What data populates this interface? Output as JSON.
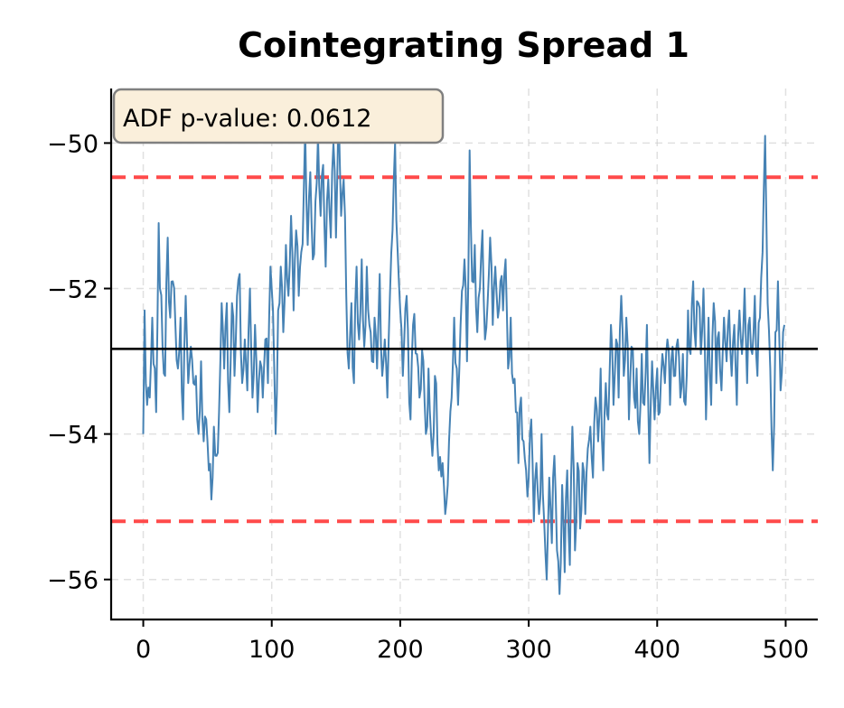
{
  "chart_data": {
    "type": "line",
    "title": "Cointegrating Spread 1",
    "xlabel": "",
    "ylabel": "",
    "xlim": [
      -25,
      525
    ],
    "ylim": [
      -56.55,
      -49.25
    ],
    "xticks": [
      0,
      100,
      200,
      300,
      400,
      500
    ],
    "xtick_labels": [
      "0",
      "100",
      "200",
      "300",
      "400",
      "500"
    ],
    "yticks": [
      -50,
      -52,
      -54,
      -56
    ],
    "ytick_labels": [
      "−50",
      "−52",
      "−54",
      "−56"
    ],
    "grid": true,
    "annotation": "ADF p-value: 0.0612",
    "mean_line": -52.83,
    "upper_band": -50.47,
    "lower_band": -55.2,
    "n_points": 500,
    "series_color": "#4682B4",
    "band_color": "#FF4A4A",
    "mean_color": "#000000",
    "annotation_bg": "#FAEFDB",
    "annotation_border": "#808080",
    "anchors": [
      [
        0,
        -54.0
      ],
      [
        1,
        -52.3
      ],
      [
        3,
        -53.6
      ],
      [
        5,
        -53.5
      ],
      [
        7,
        -52.4
      ],
      [
        10,
        -53.7
      ],
      [
        12,
        -51.1
      ],
      [
        13,
        -52.0
      ],
      [
        15,
        -52.8
      ],
      [
        17,
        -53.2
      ],
      [
        19,
        -51.3
      ],
      [
        21,
        -52.4
      ],
      [
        23,
        -51.9
      ],
      [
        25,
        -52.5
      ],
      [
        27,
        -53.1
      ],
      [
        29,
        -52.4
      ],
      [
        31,
        -53.8
      ],
      [
        33,
        -52.1
      ],
      [
        35,
        -53.3
      ],
      [
        37,
        -52.8
      ],
      [
        39,
        -53.3
      ],
      [
        41,
        -53.2
      ],
      [
        43,
        -54.0
      ],
      [
        45,
        -53.0
      ],
      [
        47,
        -54.1
      ],
      [
        49,
        -53.8
      ],
      [
        51,
        -54.5
      ],
      [
        53,
        -54.9
      ],
      [
        55,
        -53.9
      ],
      [
        57,
        -54.3
      ],
      [
        59,
        -53.7
      ],
      [
        61,
        -52.2
      ],
      [
        63,
        -53.1
      ],
      [
        65,
        -52.2
      ],
      [
        67,
        -53.7
      ],
      [
        69,
        -52.2
      ],
      [
        71,
        -53.2
      ],
      [
        73,
        -52.1
      ],
      [
        75,
        -51.8
      ],
      [
        77,
        -53.3
      ],
      [
        79,
        -52.7
      ],
      [
        81,
        -53.4
      ],
      [
        83,
        -52.0
      ],
      [
        85,
        -53.5
      ],
      [
        87,
        -52.5
      ],
      [
        89,
        -53.7
      ],
      [
        91,
        -53.0
      ],
      [
        93,
        -53.5
      ],
      [
        95,
        -52.7
      ],
      [
        97,
        -53.3
      ],
      [
        99,
        -51.7
      ],
      [
        101,
        -52.3
      ],
      [
        103,
        -54.0
      ],
      [
        105,
        -52.3
      ],
      [
        107,
        -51.7
      ],
      [
        109,
        -52.6
      ],
      [
        111,
        -51.4
      ],
      [
        113,
        -52.1
      ],
      [
        115,
        -51.0
      ],
      [
        117,
        -52.3
      ],
      [
        119,
        -51.2
      ],
      [
        121,
        -52.1
      ],
      [
        123,
        -51.5
      ],
      [
        125,
        -50.6
      ],
      [
        126,
        -49.8
      ],
      [
        128,
        -51.4
      ],
      [
        130,
        -50.4
      ],
      [
        132,
        -51.6
      ],
      [
        134,
        -50.8
      ],
      [
        136,
        -49.9
      ],
      [
        138,
        -51.0
      ],
      [
        140,
        -50.3
      ],
      [
        142,
        -51.7
      ],
      [
        144,
        -50.5
      ],
      [
        146,
        -51.3
      ],
      [
        148,
        -50.0
      ],
      [
        150,
        -51.3
      ],
      [
        152,
        -49.5
      ],
      [
        154,
        -51.0
      ],
      [
        156,
        -50.5
      ],
      [
        158,
        -52.1
      ],
      [
        160,
        -53.1
      ],
      [
        162,
        -52.2
      ],
      [
        164,
        -53.3
      ],
      [
        166,
        -51.7
      ],
      [
        168,
        -52.7
      ],
      [
        170,
        -51.6
      ],
      [
        172,
        -52.8
      ],
      [
        174,
        -51.7
      ],
      [
        176,
        -52.5
      ],
      [
        178,
        -53.0
      ],
      [
        180,
        -52.4
      ],
      [
        182,
        -53.1
      ],
      [
        184,
        -51.8
      ],
      [
        186,
        -53.2
      ],
      [
        188,
        -52.7
      ],
      [
        190,
        -53.5
      ],
      [
        192,
        -52.1
      ],
      [
        194,
        -51.2
      ],
      [
        196,
        -50.0
      ],
      [
        198,
        -51.5
      ],
      [
        200,
        -52.3
      ],
      [
        202,
        -53.2
      ],
      [
        205,
        -52.1
      ],
      [
        208,
        -53.8
      ],
      [
        210,
        -52.5
      ],
      [
        213,
        -52.9
      ],
      [
        215,
        -53.5
      ],
      [
        218,
        -53.0
      ],
      [
        220,
        -54.0
      ],
      [
        222,
        -53.1
      ],
      [
        225,
        -54.3
      ],
      [
        227,
        -53.2
      ],
      [
        230,
        -54.5
      ],
      [
        233,
        -54.4
      ],
      [
        235,
        -55.1
      ],
      [
        237,
        -54.7
      ],
      [
        240,
        -53.5
      ],
      [
        242,
        -52.4
      ],
      [
        245,
        -53.6
      ],
      [
        247,
        -52.5
      ],
      [
        250,
        -51.6
      ],
      [
        252,
        -53.0
      ],
      [
        254,
        -50.1
      ],
      [
        256,
        -51.9
      ],
      [
        258,
        -51.4
      ],
      [
        260,
        -52.6
      ],
      [
        262,
        -52.0
      ],
      [
        264,
        -51.2
      ],
      [
        266,
        -52.7
      ],
      [
        268,
        -52.2
      ],
      [
        270,
        -51.3
      ],
      [
        272,
        -52.5
      ],
      [
        274,
        -51.7
      ],
      [
        276,
        -52.4
      ],
      [
        278,
        -51.9
      ],
      [
        280,
        -52.3
      ],
      [
        282,
        -51.6
      ],
      [
        284,
        -53.1
      ],
      [
        286,
        -52.4
      ],
      [
        288,
        -53.3
      ],
      [
        290,
        -53.7
      ],
      [
        292,
        -54.4
      ],
      [
        294,
        -53.5
      ],
      [
        296,
        -54.1
      ],
      [
        298,
        -54.5
      ],
      [
        300,
        -54.6
      ],
      [
        302,
        -53.8
      ],
      [
        304,
        -55.2
      ],
      [
        306,
        -54.4
      ],
      [
        308,
        -55.1
      ],
      [
        310,
        -54.0
      ],
      [
        312,
        -55.2
      ],
      [
        314,
        -56.0
      ],
      [
        316,
        -54.6
      ],
      [
        318,
        -55.5
      ],
      [
        320,
        -54.3
      ],
      [
        322,
        -55.6
      ],
      [
        324,
        -56.2
      ],
      [
        326,
        -54.7
      ],
      [
        328,
        -55.9
      ],
      [
        330,
        -54.5
      ],
      [
        332,
        -55.8
      ],
      [
        334,
        -53.9
      ],
      [
        336,
        -55.6
      ],
      [
        338,
        -54.4
      ],
      [
        340,
        -55.3
      ],
      [
        342,
        -54.4
      ],
      [
        344,
        -55.1
      ],
      [
        346,
        -54.2
      ],
      [
        348,
        -53.9
      ],
      [
        350,
        -54.6
      ],
      [
        352,
        -53.5
      ],
      [
        354,
        -54.1
      ],
      [
        356,
        -53.1
      ],
      [
        358,
        -54.5
      ],
      [
        360,
        -53.3
      ],
      [
        362,
        -53.8
      ],
      [
        364,
        -52.5
      ],
      [
        366,
        -53.6
      ],
      [
        368,
        -52.7
      ],
      [
        370,
        -53.5
      ],
      [
        372,
        -52.1
      ],
      [
        374,
        -53.2
      ],
      [
        376,
        -52.4
      ],
      [
        378,
        -53.8
      ],
      [
        380,
        -52.8
      ],
      [
        382,
        -53.5
      ],
      [
        384,
        -53.1
      ],
      [
        386,
        -54.0
      ],
      [
        388,
        -52.9
      ],
      [
        390,
        -53.6
      ],
      [
        392,
        -52.5
      ],
      [
        394,
        -54.4
      ],
      [
        396,
        -53.0
      ],
      [
        398,
        -53.8
      ],
      [
        400,
        -53.1
      ],
      [
        402,
        -53.7
      ],
      [
        404,
        -52.9
      ],
      [
        406,
        -53.3
      ],
      [
        408,
        -52.7
      ],
      [
        410,
        -53.6
      ],
      [
        412,
        -52.8
      ],
      [
        414,
        -53.2
      ],
      [
        416,
        -52.7
      ],
      [
        418,
        -53.5
      ],
      [
        420,
        -52.9
      ],
      [
        422,
        -53.6
      ],
      [
        424,
        -52.3
      ],
      [
        426,
        -52.9
      ],
      [
        428,
        -51.9
      ],
      [
        430,
        -52.8
      ],
      [
        432,
        -52.2
      ],
      [
        434,
        -52.9
      ],
      [
        436,
        -52.0
      ],
      [
        438,
        -53.8
      ],
      [
        440,
        -52.4
      ],
      [
        442,
        -53.6
      ],
      [
        444,
        -52.2
      ],
      [
        446,
        -53.3
      ],
      [
        448,
        -52.6
      ],
      [
        450,
        -53.4
      ],
      [
        452,
        -52.4
      ],
      [
        454,
        -53.0
      ],
      [
        456,
        -52.3
      ],
      [
        458,
        -53.2
      ],
      [
        460,
        -52.5
      ],
      [
        462,
        -53.6
      ],
      [
        464,
        -52.3
      ],
      [
        466,
        -52.9
      ],
      [
        468,
        -52.0
      ],
      [
        470,
        -53.3
      ],
      [
        472,
        -52.4
      ],
      [
        474,
        -52.9
      ],
      [
        476,
        -52.1
      ],
      [
        478,
        -53.2
      ],
      [
        480,
        -52.4
      ],
      [
        482,
        -51.5
      ],
      [
        484,
        -49.9
      ],
      [
        486,
        -52.2
      ],
      [
        488,
        -53.1
      ],
      [
        490,
        -54.5
      ],
      [
        492,
        -52.6
      ],
      [
        494,
        -51.9
      ],
      [
        496,
        -53.4
      ],
      [
        498,
        -52.6
      ],
      [
        499,
        -52.5
      ]
    ]
  }
}
